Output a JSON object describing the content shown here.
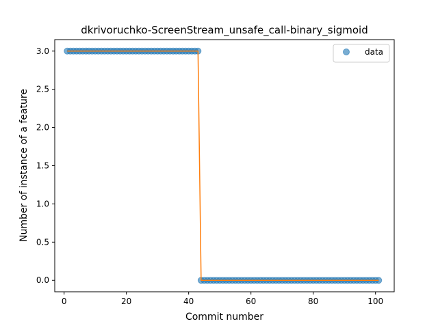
{
  "chart_data": {
    "type": "scatter",
    "title": "dkrivoruchko-ScreenStream_unsafe_call-binary_sigmoid",
    "xlabel": "Commit number",
    "ylabel": "Number of instance of a feature",
    "xlim": [
      -3.0,
      106.0
    ],
    "ylim": [
      -0.15,
      3.15
    ],
    "xticks": [
      0,
      20,
      40,
      60,
      80,
      100
    ],
    "yticks": [
      0.0,
      0.5,
      1.0,
      1.5,
      2.0,
      2.5,
      3.0
    ],
    "xtick_labels": [
      "0",
      "20",
      "40",
      "60",
      "80",
      "100"
    ],
    "ytick_labels": [
      "0.0",
      "0.5",
      "1.0",
      "1.5",
      "2.0",
      "2.5",
      "3.0"
    ],
    "grid": false,
    "legend_position": "top-right",
    "legend": [
      "data"
    ],
    "series": [
      {
        "name": "data",
        "kind": "scatter",
        "color": "#1f77b4",
        "x_start": 1,
        "x_end": 101,
        "step": 1,
        "value_before": 3,
        "value_after": 0,
        "change_after_x": 43
      },
      {
        "kind": "line",
        "color": "#ff7f0e",
        "x": [
          1,
          43,
          44,
          101
        ],
        "y": [
          3,
          3,
          0,
          0
        ]
      }
    ]
  }
}
